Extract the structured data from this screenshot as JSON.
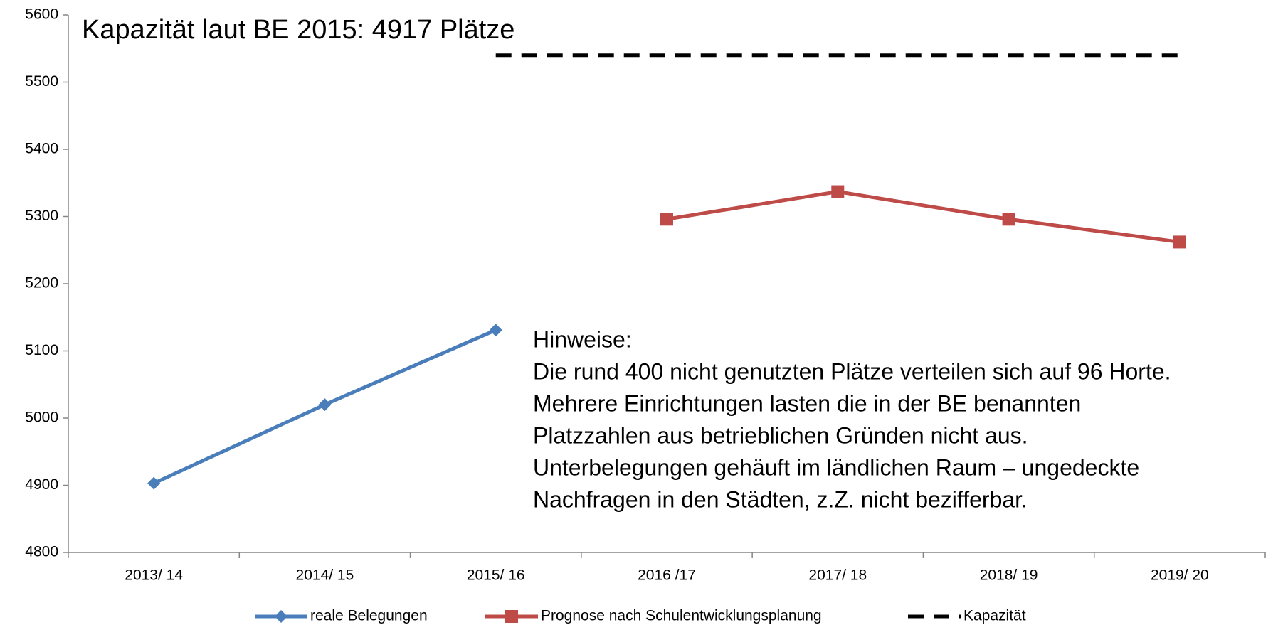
{
  "chart_data": {
    "type": "line",
    "categories": [
      "2013/ 14",
      "2014/ 15",
      "2015/ 16",
      "2016 /17",
      "2017/ 18",
      "2018/ 19",
      "2019/ 20"
    ],
    "series": [
      {
        "name": "reale Belegungen",
        "color": "#4a7ebb",
        "marker": "diamond",
        "dash": false,
        "values": [
          4903,
          5020,
          5131,
          null,
          null,
          null,
          null
        ]
      },
      {
        "name": "Prognose nach Schulentwicklungsplanung",
        "color": "#be4b48",
        "marker": "square",
        "dash": false,
        "values": [
          null,
          null,
          null,
          5296,
          5337,
          5296,
          5262
        ]
      },
      {
        "name": "Kapazität",
        "color": "#000000",
        "marker": "none",
        "dash": true,
        "values": [
          null,
          null,
          5540,
          5540,
          5540,
          5540,
          5540
        ]
      }
    ],
    "ylim": [
      4800,
      5600
    ],
    "yticks": [
      4800,
      4900,
      5000,
      5100,
      5200,
      5300,
      5400,
      5500,
      5600
    ],
    "grid": false,
    "legend": "bottom",
    "annotations": [
      "Kapazität laut BE 2015: 4917 Plätze",
      "Hinweise:",
      "Die rund 400 nicht genutzten Plätze verteilen sich auf 96 Horte.",
      "Mehrere Einrichtungen lasten die in der BE benannten",
      "Platzzahlen aus betrieblichen Gründen nicht aus.",
      "Unterbelegungen gehäuft im ländlichen Raum – ungedeckte",
      "Nachfragen in den Städten, z.Z. nicht bezifferbar."
    ]
  }
}
